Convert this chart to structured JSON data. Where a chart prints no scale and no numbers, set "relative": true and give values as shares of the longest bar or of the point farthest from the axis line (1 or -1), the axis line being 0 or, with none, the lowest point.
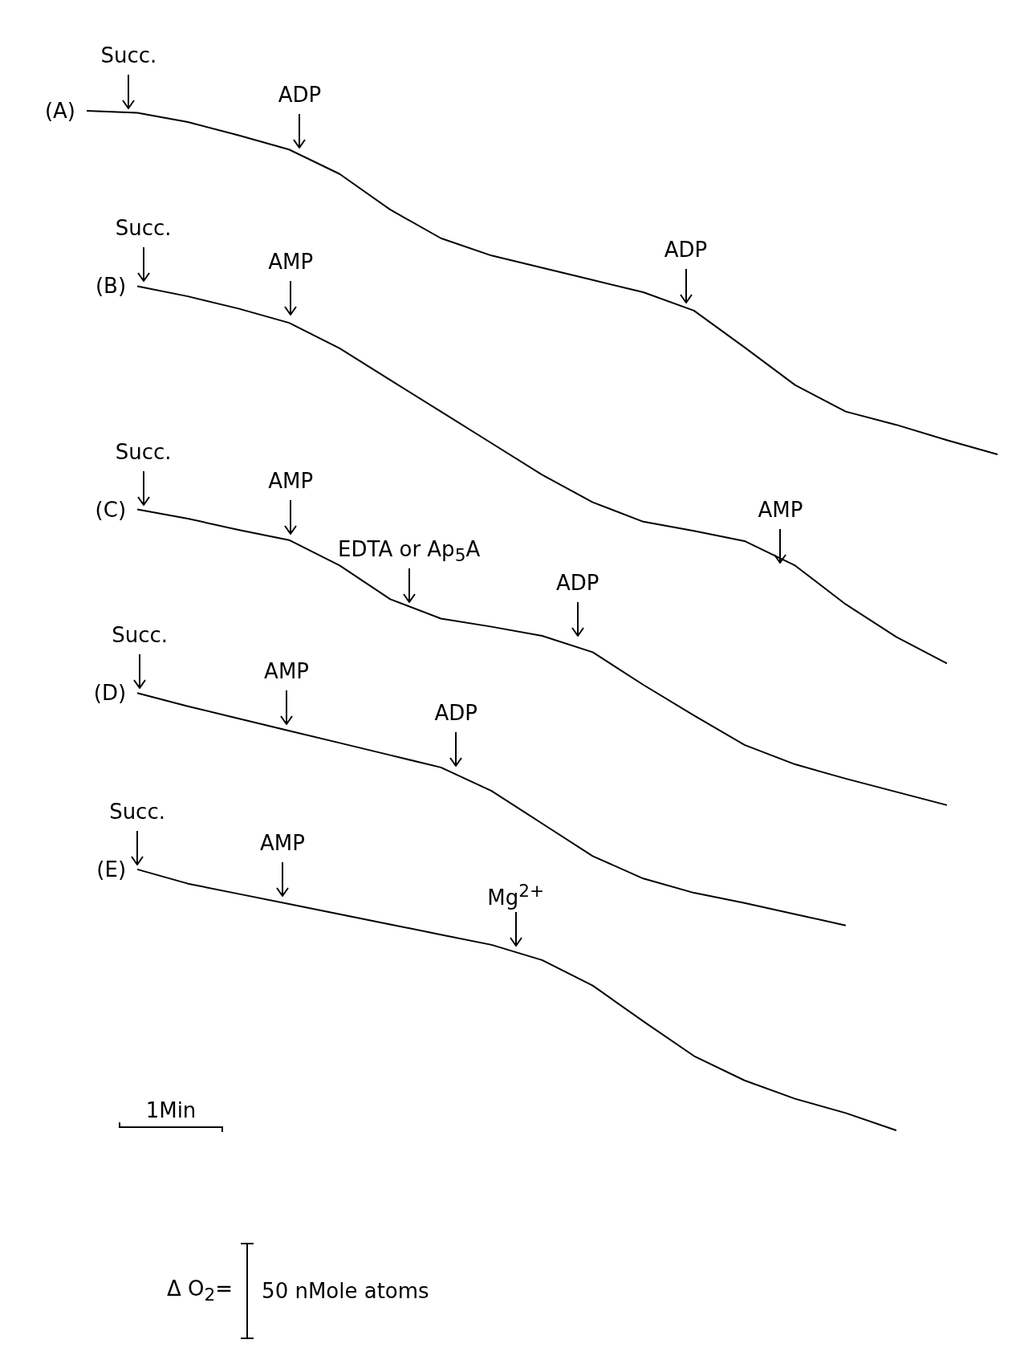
{
  "chart_data": {
    "type": "line",
    "relative": true,
    "legend": "left",
    "categories": [
      null,
      null,
      null,
      null,
      null,
      null,
      null,
      null,
      null,
      null,
      null,
      null,
      null,
      null,
      null,
      null,
      null,
      null,
      null
    ],
    "series": [
      {
        "name": "(A)",
        "color": "#000000",
        "values": [
          1.0,
          0.998,
          0.989,
          0.976,
          0.962,
          0.938,
          0.903,
          0.875,
          0.858,
          0.846,
          0.834,
          0.822,
          0.804,
          0.768,
          0.731,
          0.705,
          0.692,
          0.677,
          0.663
        ]
      },
      {
        "name": "(B)",
        "color": "#000000",
        "values": [
          null,
          0.828,
          0.818,
          0.806,
          0.792,
          0.767,
          0.736,
          0.705,
          0.674,
          0.643,
          0.616,
          0.597,
          0.588,
          0.578,
          0.554,
          0.516,
          0.484,
          0.458,
          null
        ]
      },
      {
        "name": "(C)",
        "color": "#000000",
        "values": [
          null,
          0.609,
          0.6,
          0.589,
          0.579,
          0.554,
          0.521,
          0.502,
          0.494,
          0.485,
          0.469,
          0.437,
          0.407,
          0.378,
          0.359,
          0.345,
          0.332,
          0.319,
          null
        ]
      },
      {
        "name": "(D)",
        "color": "#000000",
        "values": [
          null,
          0.429,
          0.416,
          0.404,
          0.392,
          0.38,
          0.368,
          0.356,
          0.333,
          0.301,
          0.269,
          0.247,
          0.233,
          0.223,
          0.212,
          0.201,
          null,
          null,
          null
        ]
      },
      {
        "name": "(E)",
        "color": "#000000",
        "values": [
          null,
          0.256,
          0.242,
          0.232,
          0.222,
          0.212,
          0.202,
          0.192,
          0.182,
          0.167,
          0.142,
          0.107,
          0.073,
          0.049,
          0.031,
          0.017,
          0.0,
          null,
          null
        ]
      }
    ],
    "annotations": [
      "Succ.",
      "ADP",
      "ADP",
      "Succ.",
      "AMP",
      "AMP",
      "Succ.",
      "AMP",
      "EDTA or Ap$_{5}$A",
      "ADP",
      "Succ.",
      "AMP",
      "ADP",
      "Succ.",
      "AMP",
      "Mg$^{2+}$",
      "1Min",
      "Δ O$_{2}$=",
      "50 nMole atoms"
    ]
  }
}
